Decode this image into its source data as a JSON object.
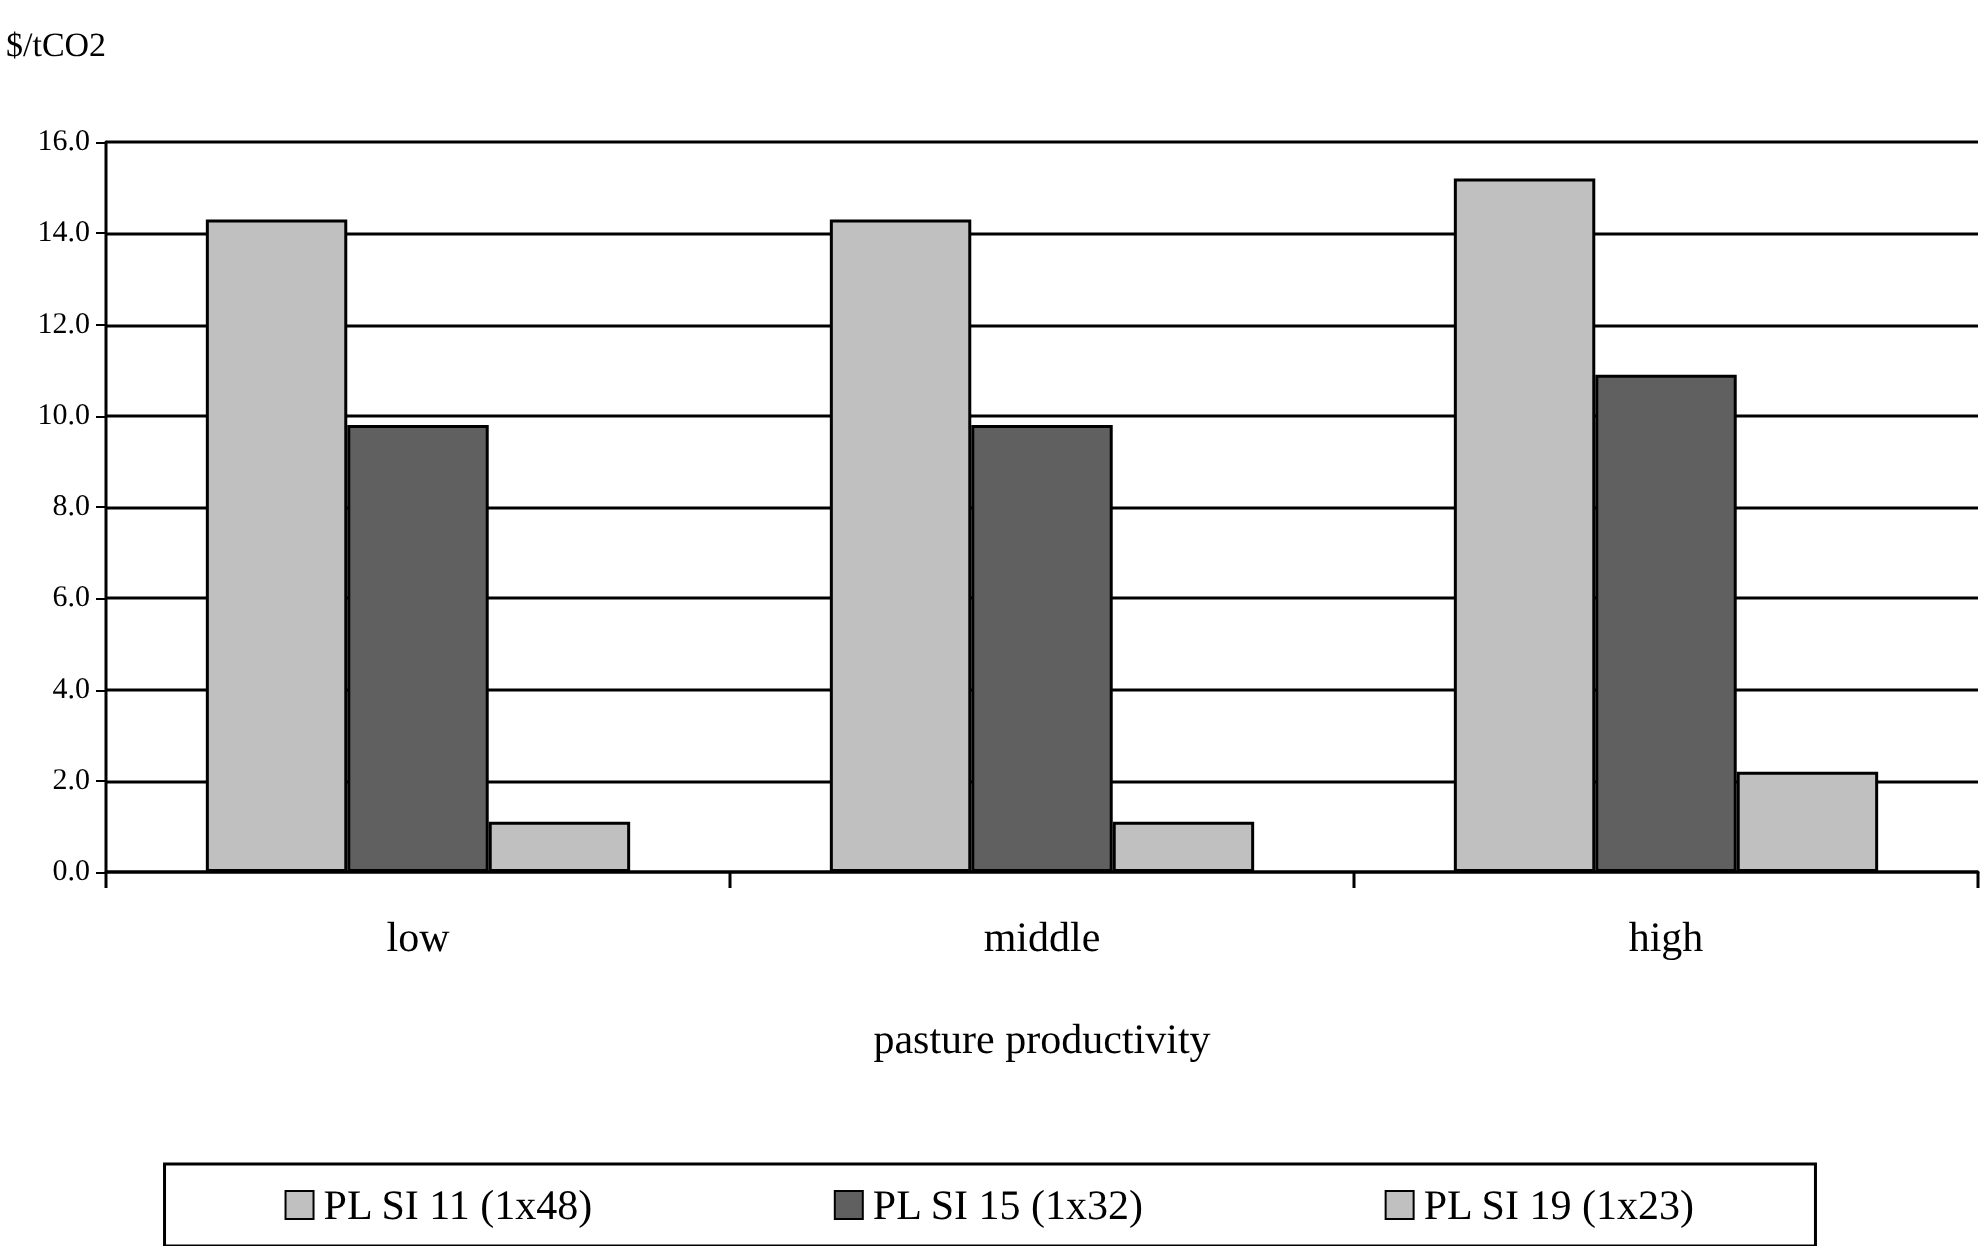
{
  "chart_data": {
    "type": "bar",
    "ylabel": "$/tCO2",
    "xlabel": "pasture productivity",
    "categories": [
      "low",
      "middle",
      "high"
    ],
    "series": [
      {
        "name": "PL SI 11 (1x48)",
        "color": "#c0c0c0",
        "values": [
          14.3,
          14.3,
          15.2
        ]
      },
      {
        "name": "PL SI 15 (1x32)",
        "color": "#606060",
        "values": [
          9.8,
          9.8,
          10.9
        ]
      },
      {
        "name": "PL SI 19 (1x23)",
        "color": "#c0c0c0",
        "values": [
          1.1,
          1.1,
          2.2
        ]
      }
    ],
    "ylim": [
      0,
      16
    ],
    "yticks": [
      {
        "value": 0,
        "label": "0.0"
      },
      {
        "value": 2,
        "label": "2.0"
      },
      {
        "value": 4,
        "label": "4.0"
      },
      {
        "value": 6,
        "label": "6.0"
      },
      {
        "value": 8,
        "label": "8.0"
      },
      {
        "value": 10,
        "label": "10.0"
      },
      {
        "value": 12,
        "label": "12.0"
      },
      {
        "value": 14,
        "label": "14.0"
      },
      {
        "value": 16,
        "label": "16.0"
      }
    ],
    "grid": "y",
    "legend": "bottom"
  }
}
